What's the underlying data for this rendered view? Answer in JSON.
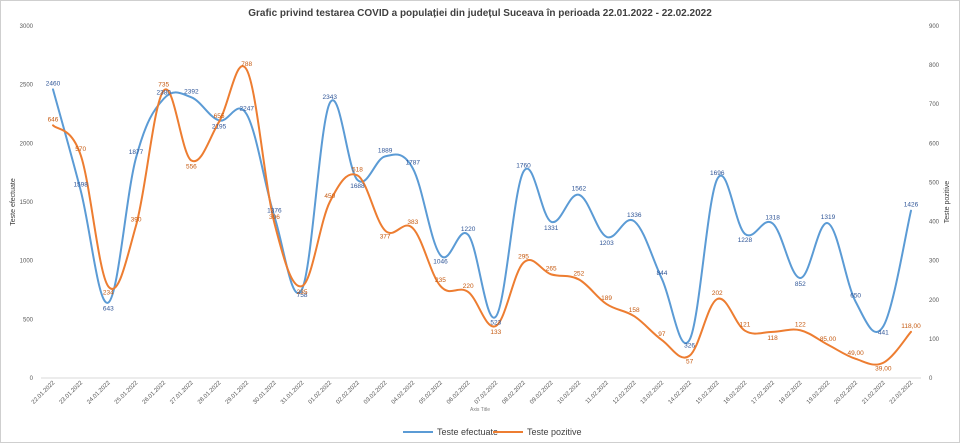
{
  "chart_data": {
    "type": "line",
    "title": "Grafic privind testarea COVID a populației din județul Suceava în perioada 22.01.2022 - 22.02.2022",
    "xlabel": "Axis Title",
    "ylabel": "Teste efectuate",
    "y2label": "Teste pozitive",
    "ylim": [
      0,
      3000
    ],
    "y2lim": [
      0,
      900
    ],
    "yticks": [
      0,
      500,
      1000,
      1500,
      2000,
      2500,
      3000
    ],
    "y2ticks": [
      0,
      100,
      200,
      300,
      400,
      500,
      600,
      700,
      800,
      900
    ],
    "grid": false,
    "legend": "bottom",
    "categories": [
      "22.01.2022",
      "23.01.2022",
      "24.01.2022",
      "25.01.2022",
      "26.01.2022",
      "27.01.2022",
      "28.01.2022",
      "29.01.2022",
      "30.01.2022",
      "31.01.2022",
      "01.02.2022",
      "02.02.2022",
      "03.02.2022",
      "04.02.2022",
      "05.02.2022",
      "06.02.2022",
      "07.02.2022",
      "08.02.2022",
      "09.02.2022",
      "10.02.2022",
      "11.02.2022",
      "12.02.2022",
      "13.02.2022",
      "14.02.2022",
      "15.02.2022",
      "16.02.2022",
      "17.02.2022",
      "18.02.2022",
      "19.02.2022",
      "20.02.2022",
      "21.02.2022",
      "22.02.2022"
    ],
    "series": [
      {
        "name": "Teste efectuate",
        "axis": "left",
        "color": "#5b9bd5",
        "values": [
          2460,
          1598,
          643,
          1877,
          2380,
          2392,
          2195,
          2247,
          1376,
          758,
          2343,
          1688,
          1889,
          1787,
          1046,
          1220,
          523,
          1760,
          1331,
          1562,
          1203,
          1336,
          844,
          326,
          1696,
          1228,
          1318,
          852,
          1319,
          650,
          441,
          1426
        ],
        "labels": [
          "2460",
          "1598",
          "643",
          "1877",
          "2380",
          "2392",
          "2195",
          "2247",
          "1376",
          "758",
          "2343",
          "1688",
          "1889",
          "1787",
          "1046",
          "1220",
          "523",
          "1760",
          "1331",
          "1562",
          "1203",
          "1336",
          "844",
          "326",
          "1696",
          "1228",
          "1318",
          "852",
          "1319",
          "650",
          "441",
          "1426"
        ]
      },
      {
        "name": "Teste pozitive",
        "axis": "right",
        "color": "#ed7d31",
        "values": [
          646,
          570,
          234,
          390,
          735,
          556,
          655,
          788,
          396,
          235,
          450,
          518,
          377,
          383,
          235,
          220,
          133,
          295,
          265,
          252,
          189,
          158,
          97,
          57,
          202,
          121,
          118,
          122,
          85,
          49,
          39,
          118
        ],
        "labels": [
          "646",
          "570",
          "234",
          "390",
          "735",
          "556",
          "655",
          "788",
          "396",
          "235",
          "450",
          "518",
          "377",
          "383",
          "235",
          "220",
          "133",
          "295",
          "265",
          "252",
          "189",
          "158",
          "97",
          "57",
          "202",
          "121",
          "118",
          "122",
          "85,00",
          "49,00",
          "39,00",
          "118,00"
        ]
      }
    ]
  }
}
